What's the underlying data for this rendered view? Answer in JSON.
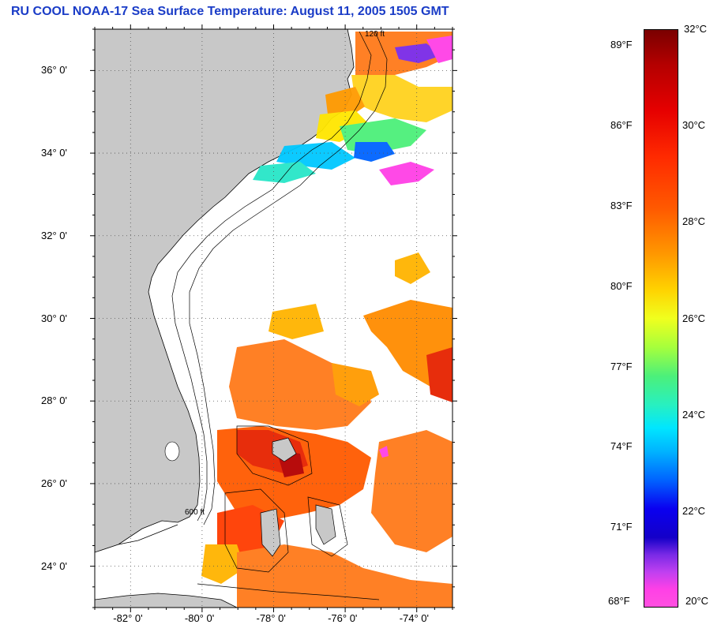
{
  "title": "RU COOL  NOAA-17  Sea Surface Temperature:  August 11, 2005 1505 GMT",
  "map": {
    "lat_range": [
      23,
      37
    ],
    "lon_range": [
      -83,
      -73
    ],
    "lat_ticks": [
      {
        "value": 36,
        "label": "36° 0'"
      },
      {
        "value": 34,
        "label": "34° 0'"
      },
      {
        "value": 32,
        "label": "32° 0'"
      },
      {
        "value": 30,
        "label": "30° 0'"
      },
      {
        "value": 28,
        "label": "28° 0'"
      },
      {
        "value": 26,
        "label": "26° 0'"
      },
      {
        "value": 24,
        "label": "24° 0'"
      }
    ],
    "lon_ticks": [
      {
        "value": -82,
        "label": "-82° 0'"
      },
      {
        "value": -80,
        "label": "-80° 0'"
      },
      {
        "value": -78,
        "label": "-78° 0'"
      },
      {
        "value": -76,
        "label": "-76° 0'"
      },
      {
        "value": -74,
        "label": "-74° 0'"
      }
    ],
    "contour_labels": [
      "120 ft",
      "600 ft"
    ],
    "colors": {
      "land": "#c8c8c8",
      "background": "#ffffff"
    }
  },
  "colorbar": {
    "fahrenheit": [
      "89°F",
      "86°F",
      "83°F",
      "80°F",
      "77°F",
      "74°F",
      "71°F",
      "68°F"
    ],
    "celsius": [
      "32°C",
      "30°C",
      "28°C",
      "26°C",
      "24°C",
      "22°C",
      "20°C"
    ]
  }
}
